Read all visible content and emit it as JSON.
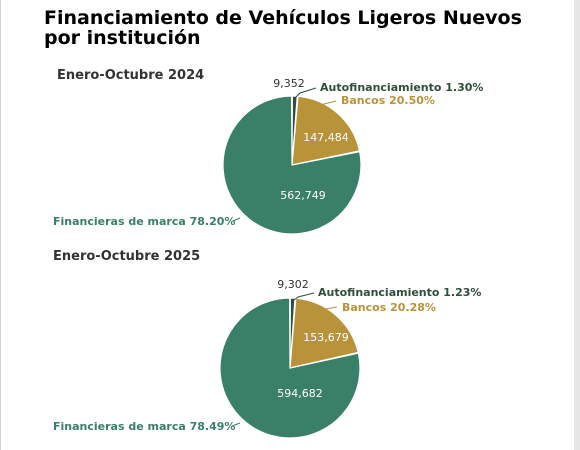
{
  "title": "Financiamiento de Vehículos Ligeros Nuevos por institución",
  "colors": {
    "financieras": "#3a8068",
    "bancos": "#b8933a",
    "autofinanciamiento": "#2f4f3a",
    "background": "#ffffff"
  },
  "chart_data": [
    {
      "type": "pie",
      "period": "Enero-Octubre 2024",
      "categories": [
        "Financieras de marca",
        "Bancos",
        "Autofinanciamiento"
      ],
      "values": [
        562749,
        147484,
        9352
      ],
      "value_labels": [
        "562,749",
        "147,484",
        "9,352"
      ],
      "percent_labels": [
        "Financieras de marca 78.20%",
        "Bancos 20.50%",
        "Autofinanciamiento 1.30%"
      ],
      "colors": [
        "#3a8068",
        "#b8933a",
        "#2f4f3a"
      ]
    },
    {
      "type": "pie",
      "period": "Enero-Octubre 2025",
      "categories": [
        "Financieras de marca",
        "Bancos",
        "Autofinanciamiento"
      ],
      "values": [
        594682,
        153679,
        9302
      ],
      "value_labels": [
        "594,682",
        "153,679",
        "9,302"
      ],
      "percent_labels": [
        "Financieras de marca 78.49%",
        "Bancos 20.28%",
        "Autofinanciamiento 1.23%"
      ],
      "colors": [
        "#3a8068",
        "#b8933a",
        "#2f4f3a"
      ]
    }
  ]
}
